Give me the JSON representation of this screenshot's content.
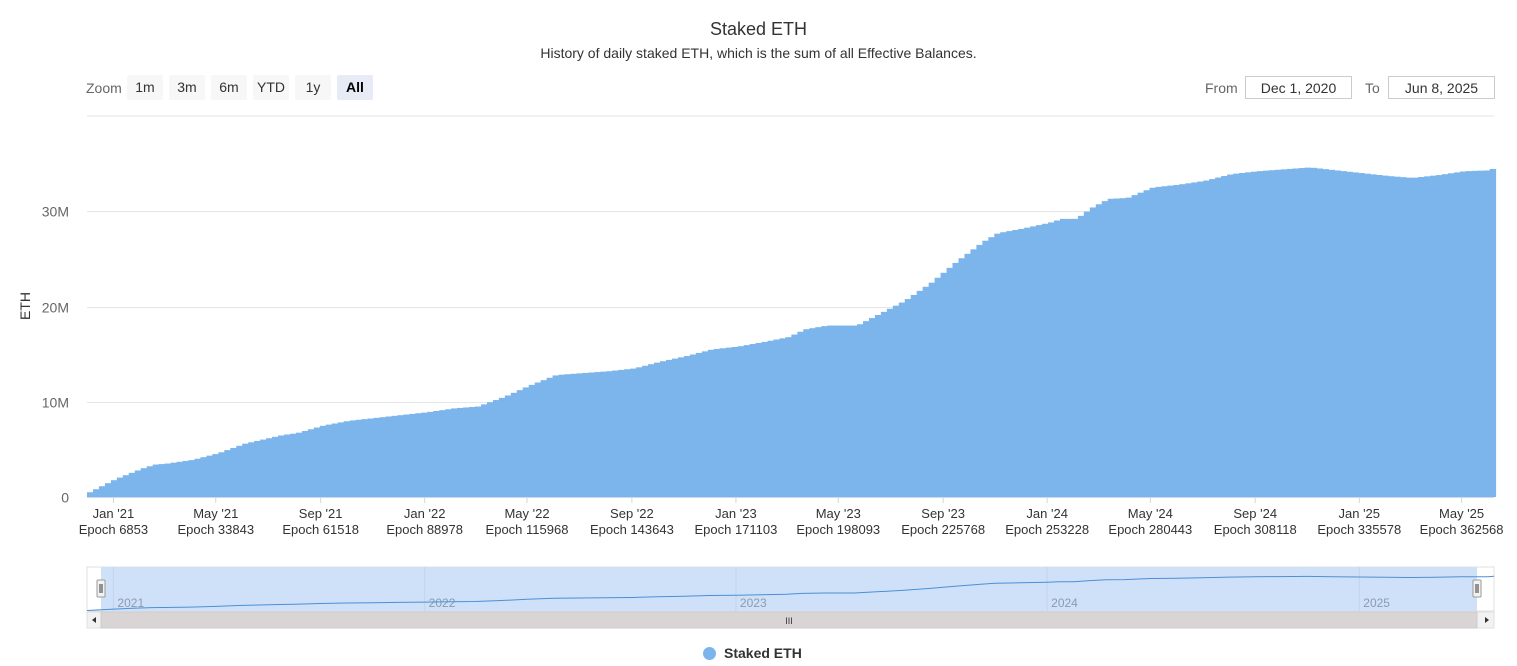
{
  "header": {
    "title": "Staked ETH",
    "subtitle": "History of daily staked ETH, which is the sum of all Effective Balances."
  },
  "range_selector": {
    "zoom_label": "Zoom",
    "buttons": [
      "1m",
      "3m",
      "6m",
      "YTD",
      "1y",
      "All"
    ],
    "selected": "All",
    "from_label": "From",
    "from_value": "Dec 1, 2020",
    "to_label": "To",
    "to_value": "Jun 8, 2025"
  },
  "legend": {
    "label": "Staked ETH",
    "color": "#7cb5ec"
  },
  "navigator": {
    "year_labels": [
      "2021",
      "2022",
      "2023",
      "2024",
      "2025"
    ],
    "scrollbar_grip": "III"
  },
  "colors": {
    "series": "#7cb5ec",
    "navigator_fill": "#cfe1f8",
    "navigator_line": "#4a8fd8",
    "grid": "#e6e6e6"
  },
  "chart_data": {
    "type": "bar",
    "title": "Staked ETH",
    "subtitle": "History of daily staked ETH, which is the sum of all Effective Balances.",
    "ylabel": "ETH",
    "xlabel": "",
    "y_ticks": [
      0,
      10000000,
      20000000,
      30000000
    ],
    "y_tick_labels": [
      "0",
      "10M",
      "20M",
      "30M"
    ],
    "ylim": [
      0,
      40000000
    ],
    "x_range": [
      "2020-12-01",
      "2025-06-08"
    ],
    "x_ticks": [
      {
        "date": "2021-01-01",
        "label": "Jan '21",
        "epoch": "Epoch 6853"
      },
      {
        "date": "2021-05-01",
        "label": "May '21",
        "epoch": "Epoch 33843"
      },
      {
        "date": "2021-09-01",
        "label": "Sep '21",
        "epoch": "Epoch 61518"
      },
      {
        "date": "2022-01-01",
        "label": "Jan '22",
        "epoch": "Epoch 88978"
      },
      {
        "date": "2022-05-01",
        "label": "May '22",
        "epoch": "Epoch 115968"
      },
      {
        "date": "2022-09-01",
        "label": "Sep '22",
        "epoch": "Epoch 143643"
      },
      {
        "date": "2023-01-01",
        "label": "Jan '23",
        "epoch": "Epoch 171103"
      },
      {
        "date": "2023-05-01",
        "label": "May '23",
        "epoch": "Epoch 198093"
      },
      {
        "date": "2023-09-01",
        "label": "Sep '23",
        "epoch": "Epoch 225768"
      },
      {
        "date": "2024-01-01",
        "label": "Jan '24",
        "epoch": "Epoch 253228"
      },
      {
        "date": "2024-05-01",
        "label": "May '24",
        "epoch": "Epoch 280443"
      },
      {
        "date": "2024-09-01",
        "label": "Sep '24",
        "epoch": "Epoch 308118"
      },
      {
        "date": "2025-01-01",
        "label": "Jan '25",
        "epoch": "Epoch 335578"
      },
      {
        "date": "2025-05-01",
        "label": "May '25",
        "epoch": "Epoch 362568"
      }
    ],
    "grid": true,
    "legend_position": "bottom",
    "series": [
      {
        "name": "Staked ETH",
        "points": [
          [
            "2020-12-01",
            500000
          ],
          [
            "2021-01-01",
            1900000
          ],
          [
            "2021-02-01",
            3000000
          ],
          [
            "2021-02-15",
            3400000
          ],
          [
            "2021-03-01",
            3500000
          ],
          [
            "2021-04-01",
            3900000
          ],
          [
            "2021-05-01",
            4600000
          ],
          [
            "2021-06-01",
            5600000
          ],
          [
            "2021-07-15",
            6500000
          ],
          [
            "2021-08-01",
            6700000
          ],
          [
            "2021-09-01",
            7500000
          ],
          [
            "2021-10-01",
            8000000
          ],
          [
            "2021-11-01",
            8300000
          ],
          [
            "2021-12-01",
            8600000
          ],
          [
            "2022-01-01",
            8900000
          ],
          [
            "2022-02-01",
            9300000
          ],
          [
            "2022-03-01",
            9500000
          ],
          [
            "2022-04-01",
            10500000
          ],
          [
            "2022-05-01",
            11700000
          ],
          [
            "2022-06-01",
            12800000
          ],
          [
            "2022-07-01",
            13000000
          ],
          [
            "2022-08-01",
            13200000
          ],
          [
            "2022-09-01",
            13500000
          ],
          [
            "2022-10-01",
            14200000
          ],
          [
            "2022-11-01",
            14800000
          ],
          [
            "2022-12-01",
            15500000
          ],
          [
            "2023-01-01",
            15800000
          ],
          [
            "2023-02-01",
            16300000
          ],
          [
            "2023-03-01",
            16800000
          ],
          [
            "2023-03-20",
            17600000
          ],
          [
            "2023-04-15",
            18000000
          ],
          [
            "2023-05-01",
            18000000
          ],
          [
            "2023-05-20",
            18000000
          ],
          [
            "2023-06-15",
            19200000
          ],
          [
            "2023-07-15",
            20600000
          ],
          [
            "2023-08-15",
            22500000
          ],
          [
            "2023-09-15",
            24800000
          ],
          [
            "2023-10-15",
            26800000
          ],
          [
            "2023-11-01",
            27700000
          ],
          [
            "2023-12-01",
            28200000
          ],
          [
            "2024-01-01",
            28800000
          ],
          [
            "2024-01-15",
            29200000
          ],
          [
            "2024-02-01",
            29200000
          ],
          [
            "2024-02-20",
            30400000
          ],
          [
            "2024-03-10",
            31300000
          ],
          [
            "2024-04-01",
            31400000
          ],
          [
            "2024-05-01",
            32500000
          ],
          [
            "2024-06-01",
            32800000
          ],
          [
            "2024-07-01",
            33200000
          ],
          [
            "2024-08-01",
            33900000
          ],
          [
            "2024-09-01",
            34200000
          ],
          [
            "2024-10-01",
            34400000
          ],
          [
            "2024-11-01",
            34600000
          ],
          [
            "2024-12-01",
            34300000
          ],
          [
            "2025-01-01",
            34000000
          ],
          [
            "2025-02-01",
            33700000
          ],
          [
            "2025-03-01",
            33500000
          ],
          [
            "2025-04-01",
            33800000
          ],
          [
            "2025-05-01",
            34200000
          ],
          [
            "2025-06-01",
            34300000
          ],
          [
            "2025-06-08",
            34800000
          ]
        ]
      }
    ]
  }
}
